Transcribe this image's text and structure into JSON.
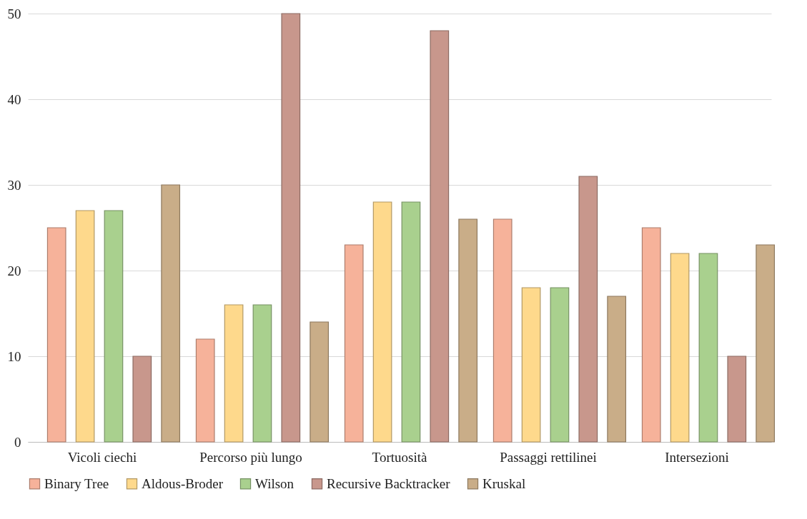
{
  "chart_data": {
    "type": "bar",
    "categories": [
      "Vicoli ciechi",
      "Percorso più lungo",
      "Tortuosità",
      "Passaggi rettilinei",
      "Intersezioni"
    ],
    "series": [
      {
        "name": "Binary Tree",
        "color": "#f6b29a",
        "values": [
          25,
          12,
          23,
          26,
          25
        ]
      },
      {
        "name": "Aldous-Broder",
        "color": "#fed98c",
        "values": [
          27,
          16,
          28,
          18,
          22
        ]
      },
      {
        "name": "Wilson",
        "color": "#a9d08e",
        "values": [
          27,
          16,
          28,
          18,
          22
        ]
      },
      {
        "name": "Recursive Backtracker",
        "color": "#c8978c",
        "values": [
          10,
          50,
          48,
          31,
          10
        ]
      },
      {
        "name": "Kruskal",
        "color": "#c9ad88",
        "values": [
          30,
          14,
          26,
          17,
          23
        ]
      }
    ],
    "ylim": [
      0,
      50
    ],
    "yticks": [
      0,
      10,
      20,
      30,
      40,
      50
    ],
    "grid": "y",
    "legend": "bottom"
  }
}
